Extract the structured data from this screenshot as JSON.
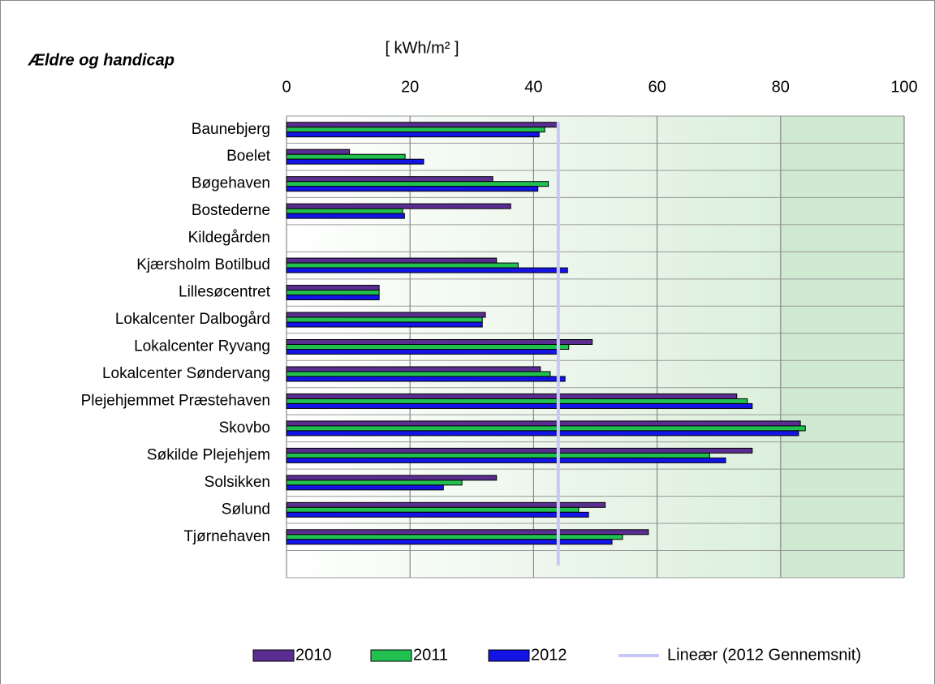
{
  "chart_data": {
    "type": "hbar",
    "title": "Ældre og handicap",
    "x_label": "[ kWh/m² ]",
    "categories": [
      "Baunebjerg",
      "Boelet",
      "Bøgehaven",
      "Bostederne",
      "Kildegården",
      "Kjærsholm Botilbud",
      "Lillesøcentret",
      "Lokalcenter Dalbogård",
      "Lokalcenter Ryvang",
      "Lokalcenter Søndervang",
      "Plejehjemmet Præstehaven",
      "Skovbo",
      "Søkilde Plejehjem",
      "Solsikken",
      "Sølund",
      "Tjørnehaven",
      null
    ],
    "series": [
      {
        "name": "2010",
        "color": "#5a2d91",
        "values": [
          43.9,
          10.2,
          33.4,
          36.3,
          null,
          34.0,
          15.0,
          32.2,
          49.5,
          41.1,
          72.9,
          83.2,
          75.4,
          34.0,
          51.6,
          58.6,
          null
        ]
      },
      {
        "name": "2011",
        "color": "#22c050",
        "values": [
          41.8,
          19.2,
          42.4,
          18.8,
          null,
          37.5,
          15.0,
          31.7,
          45.7,
          42.7,
          74.6,
          84.0,
          68.5,
          28.4,
          47.3,
          54.4,
          null
        ]
      },
      {
        "name": "2012",
        "color": "#1414e6",
        "values": [
          40.9,
          22.2,
          40.7,
          19.1,
          null,
          45.5,
          15.0,
          31.7,
          43.8,
          45.1,
          75.4,
          82.9,
          71.1,
          25.4,
          48.9,
          52.7,
          null
        ]
      }
    ],
    "trend": {
      "name": "Lineær (2012 Gennemsnit)",
      "color": "#c8c8f7",
      "value": 44.0
    },
    "xlim": [
      0,
      100
    ],
    "xticks": [
      0,
      20,
      40,
      60,
      80,
      100
    ],
    "grid": true,
    "legend": "bottom"
  }
}
